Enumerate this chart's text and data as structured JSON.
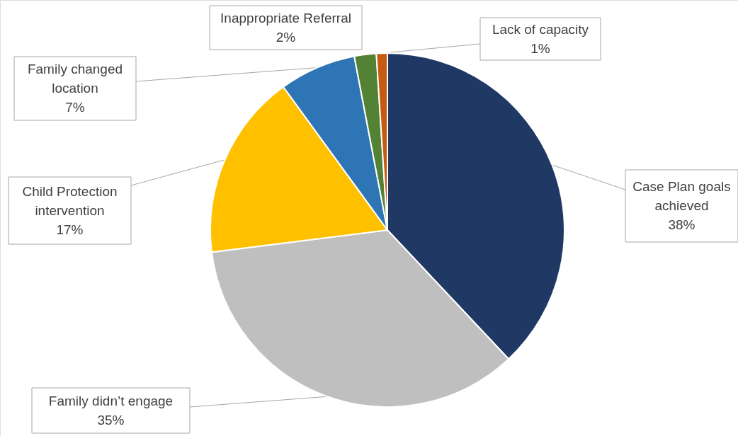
{
  "chart_data": {
    "type": "pie",
    "categories": [
      "Case Plan goals achieved",
      "Family didn’t engage",
      "Child Protection intervention",
      "Family changed location",
      "Inappropriate Referral",
      "Lack of capacity"
    ],
    "values": [
      38,
      35,
      17,
      7,
      2,
      1
    ],
    "colors": [
      "#203864",
      "#bfbfbf",
      "#ffc000",
      "#2e75b6",
      "#548235",
      "#c55a11"
    ],
    "value_labels": [
      "38%",
      "35%",
      "17%",
      "7%",
      "2%",
      "1%"
    ]
  }
}
